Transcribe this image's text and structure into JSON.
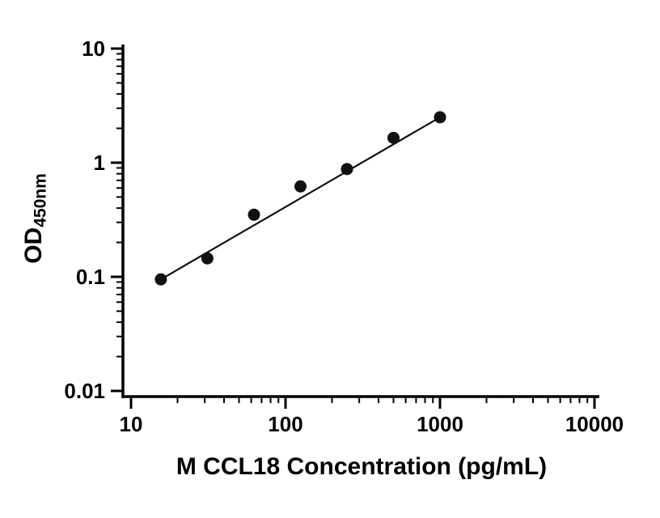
{
  "chart_data": {
    "type": "scatter",
    "title": "",
    "xlabel": "M CCL18 Concentration (pg/mL)",
    "ylabel_main": "OD",
    "ylabel_sub": "450nm",
    "xscale": "log",
    "yscale": "log",
    "xlim": [
      10,
      10000
    ],
    "ylim": [
      0.01,
      10
    ],
    "x": [
      15.6,
      31.2,
      62.5,
      125,
      250,
      500,
      1000
    ],
    "y": [
      0.095,
      0.145,
      0.35,
      0.62,
      0.88,
      1.65,
      2.5
    ],
    "x_ticks": [
      10,
      100,
      1000,
      10000
    ],
    "x_tick_labels": [
      "10",
      "100",
      "1000",
      "10000"
    ],
    "y_ticks": [
      0.01,
      0.1,
      1,
      10
    ],
    "y_tick_labels": [
      "0.01",
      "0.1",
      "1",
      "10"
    ],
    "fit_line": "straight-log-log",
    "legend": "none",
    "grid": "off",
    "marker_color": "#111111",
    "line_color": "#111111",
    "axis_color": "#000000",
    "background": "#ffffff"
  }
}
